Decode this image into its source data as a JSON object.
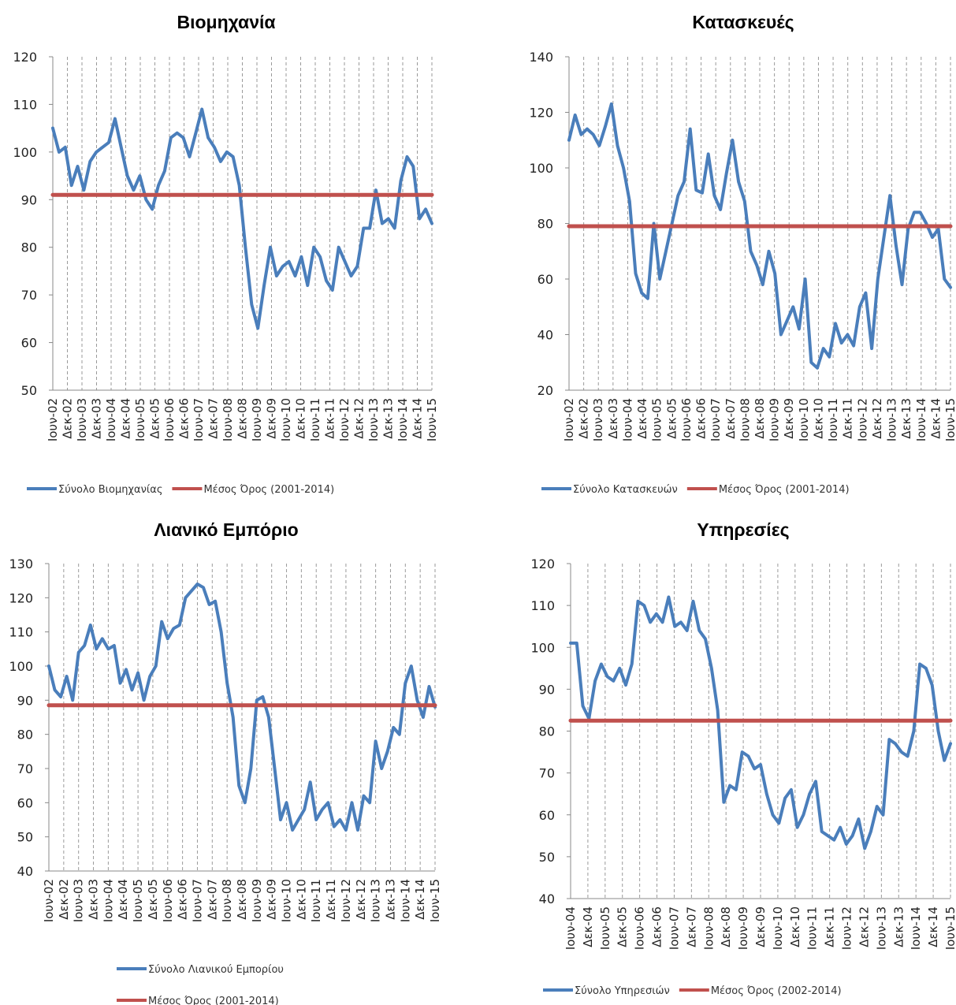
{
  "chart_data": [
    {
      "type": "line",
      "title": "Βιομηχανία",
      "ylim": [
        50,
        120
      ],
      "yticks": [
        50,
        60,
        70,
        80,
        90,
        100,
        110,
        120
      ],
      "xticklabels": [
        "Ιουν-02",
        "Δεκ-02",
        "Ιουν-03",
        "Δεκ-03",
        "Ιουν-04",
        "Δεκ-04",
        "Ιουν-05",
        "Δεκ-05",
        "Ιουν-06",
        "Δεκ-06",
        "Ιουν-07",
        "Δεκ-07",
        "Ιουν-08",
        "Δεκ-08",
        "Ιουν-09",
        "Δεκ-09",
        "Ιουν-10",
        "Δεκ-10",
        "Ιουν-11",
        "Δεκ-11",
        "Ιουν-12",
        "Δεκ-12",
        "Ιουν-13",
        "Δεκ-13",
        "Ιουν-14",
        "Δεκ-14",
        "Ιουν-15"
      ],
      "grid": "vertical dashed",
      "legend_position": "bottom",
      "series": [
        {
          "name": "Σύνολο Βιομηχανίας",
          "color": "#4a7ebb",
          "values": [
            105,
            100,
            101,
            93,
            97,
            92,
            98,
            100,
            101,
            102,
            107,
            101,
            95,
            92,
            95,
            90,
            88,
            93,
            96,
            103,
            104,
            103,
            99,
            104,
            109,
            103,
            101,
            98,
            100,
            99,
            93,
            80,
            68,
            63,
            72,
            80,
            74,
            76,
            77,
            74,
            78,
            72,
            80,
            78,
            73,
            71,
            80,
            77,
            74,
            76,
            84,
            84,
            92,
            85,
            86,
            84,
            94,
            99,
            97,
            86,
            88,
            85
          ]
        },
        {
          "name": "Μέσος Όρος (2001-2014)",
          "color": "#c0504d",
          "values": [
            91,
            91
          ]
        }
      ]
    },
    {
      "type": "line",
      "title": "Κατασκευές",
      "ylim": [
        20,
        140
      ],
      "yticks": [
        20,
        40,
        60,
        80,
        100,
        120,
        140
      ],
      "xticklabels": [
        "Ιουν-02",
        "Δεκ-02",
        "Ιουν-03",
        "Δεκ-03",
        "Ιουν-04",
        "Δεκ-04",
        "Ιουν-05",
        "Δεκ-05",
        "Ιουν-06",
        "Δεκ-06",
        "Ιουν-07",
        "Δεκ-07",
        "Ιουν-08",
        "Δεκ-08",
        "Ιουν-09",
        "Δεκ-09",
        "Ιουν-10",
        "Δεκ-10",
        "Ιουν-11",
        "Δεκ-11",
        "Ιουν-12",
        "Δεκ-12",
        "Ιουν-13",
        "Δεκ-13",
        "Ιουν-14",
        "Δεκ-14",
        "Ιουν-15"
      ],
      "grid": "vertical dashed",
      "legend_position": "bottom",
      "series": [
        {
          "name": "Σύνολο Κατασκευών",
          "color": "#4a7ebb",
          "values": [
            110,
            119,
            112,
            114,
            112,
            108,
            115,
            123,
            108,
            100,
            88,
            62,
            55,
            53,
            80,
            60,
            70,
            80,
            90,
            95,
            114,
            92,
            91,
            105,
            90,
            85,
            98,
            110,
            95,
            88,
            70,
            65,
            58,
            70,
            62,
            40,
            45,
            50,
            42,
            60,
            30,
            28,
            35,
            32,
            44,
            37,
            40,
            36,
            50,
            55,
            35,
            60,
            75,
            90,
            72,
            58,
            78,
            84,
            84,
            80,
            75,
            78,
            60,
            57
          ]
        },
        {
          "name": "Μέσος Όρος (2001-2014)",
          "color": "#c0504d",
          "values": [
            79,
            79
          ]
        }
      ]
    },
    {
      "type": "line",
      "title": "Λιανικό Εμπόριο",
      "ylim": [
        40,
        130
      ],
      "yticks": [
        40,
        50,
        60,
        70,
        80,
        90,
        100,
        110,
        120,
        130
      ],
      "xticklabels": [
        "Ιουν-02",
        "Δεκ-02",
        "Ιουν-03",
        "Δεκ-03",
        "Ιουν-04",
        "Δεκ-04",
        "Ιουν-05",
        "Δεκ-05",
        "Ιουν-06",
        "Δεκ-06",
        "Ιουν-07",
        "Δεκ-07",
        "Ιουν-08",
        "Δεκ-08",
        "Ιουν-09",
        "Δεκ-09",
        "Ιουν-10",
        "Δεκ-10",
        "Ιουν-11",
        "Δεκ-11",
        "Ιουν-12",
        "Δεκ-12",
        "Ιουν-13",
        "Δεκ-13",
        "Ιουν-14",
        "Δεκ-14",
        "Ιουν-15"
      ],
      "grid": "vertical dashed",
      "legend_position": "bottom",
      "series": [
        {
          "name": "Σύνολο Λιανικού Εμπορίου",
          "color": "#4a7ebb",
          "values": [
            100,
            93,
            91,
            97,
            90,
            104,
            106,
            112,
            105,
            108,
            105,
            106,
            95,
            99,
            93,
            98,
            90,
            97,
            100,
            113,
            108,
            111,
            112,
            120,
            122,
            124,
            123,
            118,
            119,
            110,
            95,
            85,
            65,
            60,
            70,
            90,
            91,
            85,
            70,
            55,
            60,
            52,
            55,
            58,
            66,
            55,
            58,
            60,
            53,
            55,
            52,
            60,
            52,
            62,
            60,
            78,
            70,
            75,
            82,
            80,
            95,
            100,
            90,
            85,
            94,
            88
          ]
        },
        {
          "name": "Μέσος Όρος (2001-2014)",
          "color": "#c0504d",
          "values": [
            88.5,
            88.5
          ]
        }
      ]
    },
    {
      "type": "line",
      "title": "Υπηρεσίες",
      "ylim": [
        40,
        120
      ],
      "yticks": [
        40,
        50,
        60,
        70,
        80,
        90,
        100,
        110,
        120
      ],
      "xticklabels": [
        "Ιουν-04",
        "Δεκ-04",
        "Ιουν-05",
        "Δεκ-05",
        "Ιουν-06",
        "Δεκ-06",
        "Ιουν-07",
        "Δεκ-07",
        "Ιουν-08",
        "Δεκ-08",
        "Ιουν-09",
        "Δεκ-09",
        "Ιουν-10",
        "Δεκ-10",
        "Ιουν-11",
        "Δεκ-11",
        "Ιουν-12",
        "Δεκ-12",
        "Ιουν-13",
        "Δεκ-13",
        "Ιουν-14",
        "Δεκ-14",
        "Ιουν-15"
      ],
      "grid": "vertical dashed",
      "legend_position": "bottom",
      "series": [
        {
          "name": "Σύνολο Υπηρεσιών",
          "color": "#4a7ebb",
          "values": [
            101,
            101,
            86,
            83,
            92,
            96,
            93,
            92,
            95,
            91,
            96,
            111,
            110,
            106,
            108,
            106,
            112,
            105,
            106,
            104,
            111,
            104,
            102,
            95,
            85,
            63,
            67,
            66,
            75,
            74,
            71,
            72,
            65,
            60,
            58,
            64,
            66,
            57,
            60,
            65,
            68,
            56,
            55,
            54,
            57,
            53,
            55,
            59,
            52,
            56,
            62,
            60,
            78,
            77,
            75,
            74,
            80,
            96,
            95,
            91,
            80,
            73,
            77
          ]
        },
        {
          "name": "Μέσος Όρος (2002-2014)",
          "color": "#c0504d",
          "values": [
            82.5,
            82.5
          ]
        }
      ]
    }
  ]
}
